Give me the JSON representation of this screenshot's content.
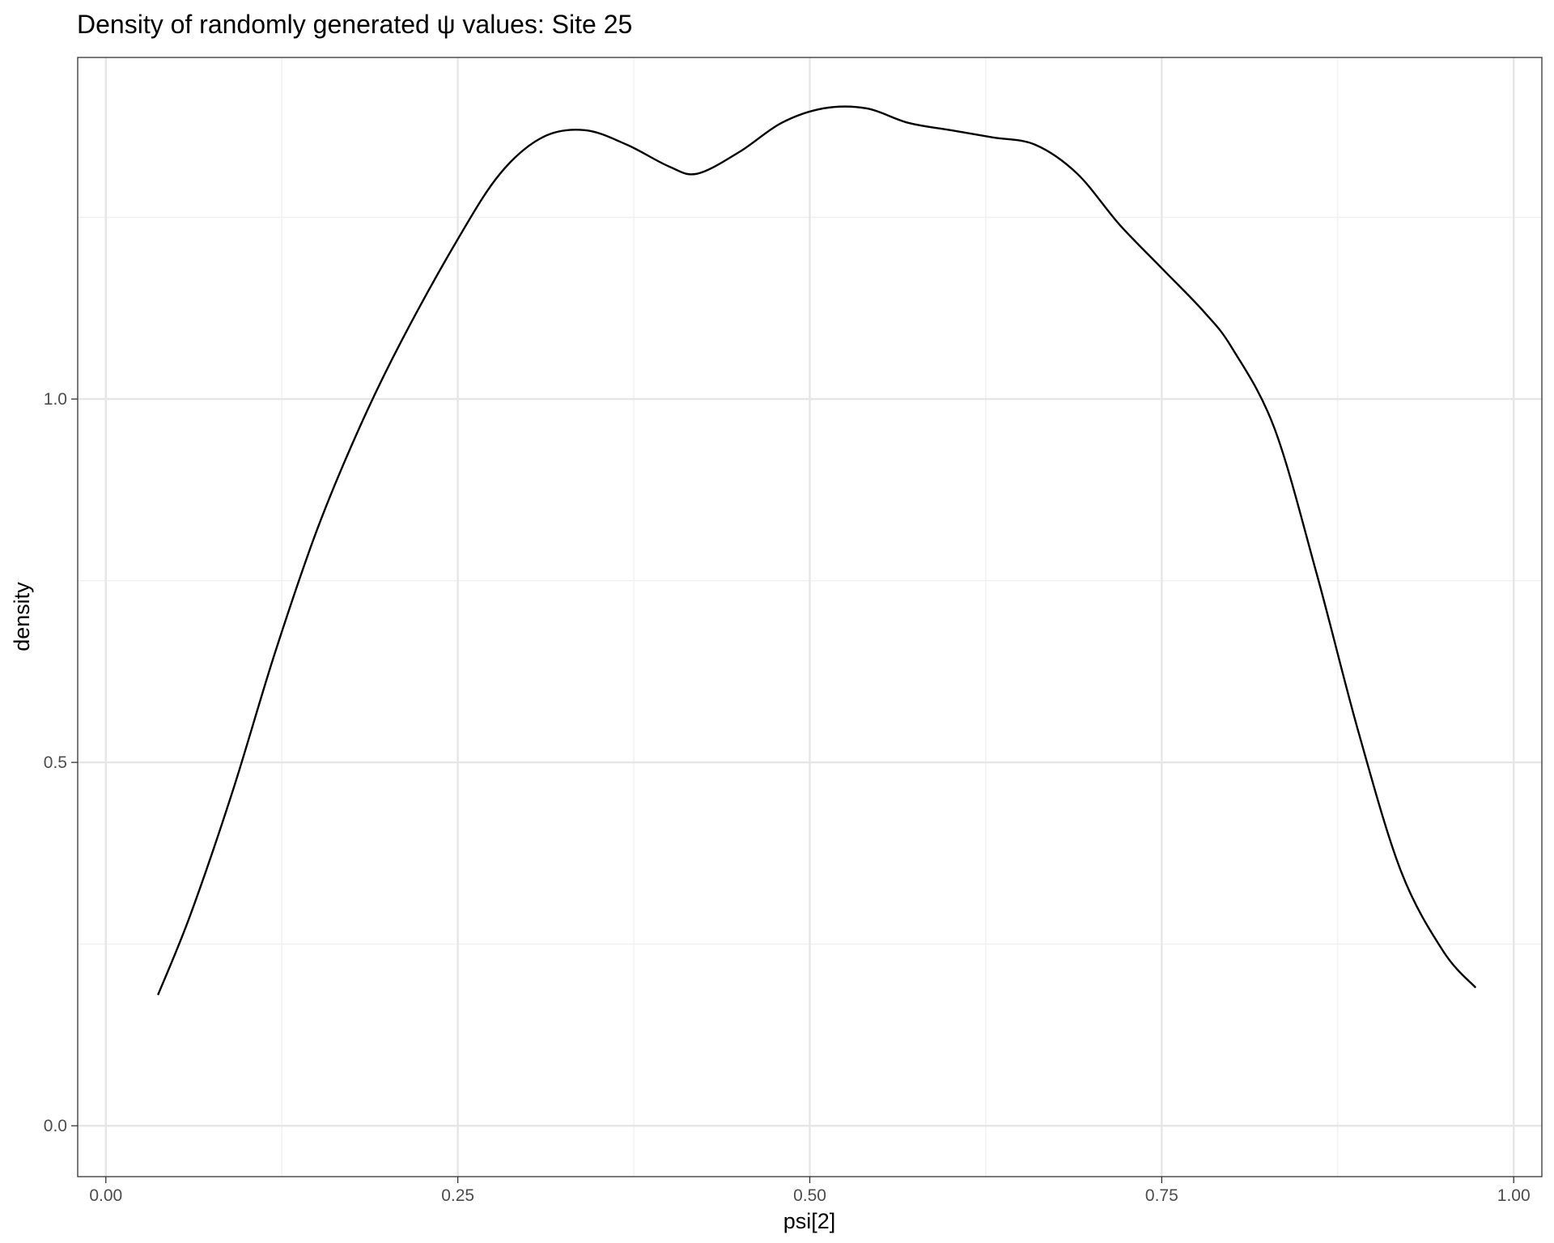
{
  "chart_data": {
    "type": "line",
    "title": "Density of randomly generated ψ values: Site 25",
    "xlabel": "psi[2]",
    "ylabel": "density",
    "xlim": [
      -0.02,
      1.02
    ],
    "ylim": [
      -0.07,
      1.47
    ],
    "x_ticks": [
      0.0,
      0.25,
      0.5,
      0.75,
      1.0
    ],
    "x_tick_labels": [
      "0.00",
      "0.25",
      "0.50",
      "0.75",
      "1.00"
    ],
    "y_ticks": [
      0.0,
      0.5,
      1.0
    ],
    "y_tick_labels": [
      "0.0",
      "0.5",
      "1.0"
    ],
    "x_minor_ticks": [
      0.125,
      0.375,
      0.625,
      0.875
    ],
    "y_minor_ticks": [
      0.25,
      0.75,
      1.25
    ],
    "grid": true,
    "legend": "none",
    "colors": {
      "line": "#000000",
      "grid_major": "#e6e6e6",
      "grid_minor": "#f0f0f0",
      "panel_border": "#333333",
      "tick_label": "#4d4d4d",
      "background": "#ffffff"
    },
    "series": [
      {
        "x": [
          0.037,
          0.06,
          0.09,
          0.12,
          0.15,
          0.18,
          0.21,
          0.25,
          0.28,
          0.31,
          0.34,
          0.37,
          0.4,
          0.42,
          0.45,
          0.48,
          0.51,
          0.54,
          0.57,
          0.6,
          0.63,
          0.66,
          0.69,
          0.72,
          0.75,
          0.78,
          0.8,
          0.83,
          0.86,
          0.89,
          0.92,
          0.95,
          0.973
        ],
        "y": [
          0.18,
          0.29,
          0.46,
          0.65,
          0.82,
          0.96,
          1.08,
          1.22,
          1.31,
          1.36,
          1.37,
          1.35,
          1.32,
          1.31,
          1.34,
          1.38,
          1.4,
          1.4,
          1.38,
          1.37,
          1.36,
          1.35,
          1.31,
          1.24,
          1.18,
          1.12,
          1.07,
          0.96,
          0.76,
          0.54,
          0.35,
          0.24,
          0.19
        ]
      }
    ]
  }
}
